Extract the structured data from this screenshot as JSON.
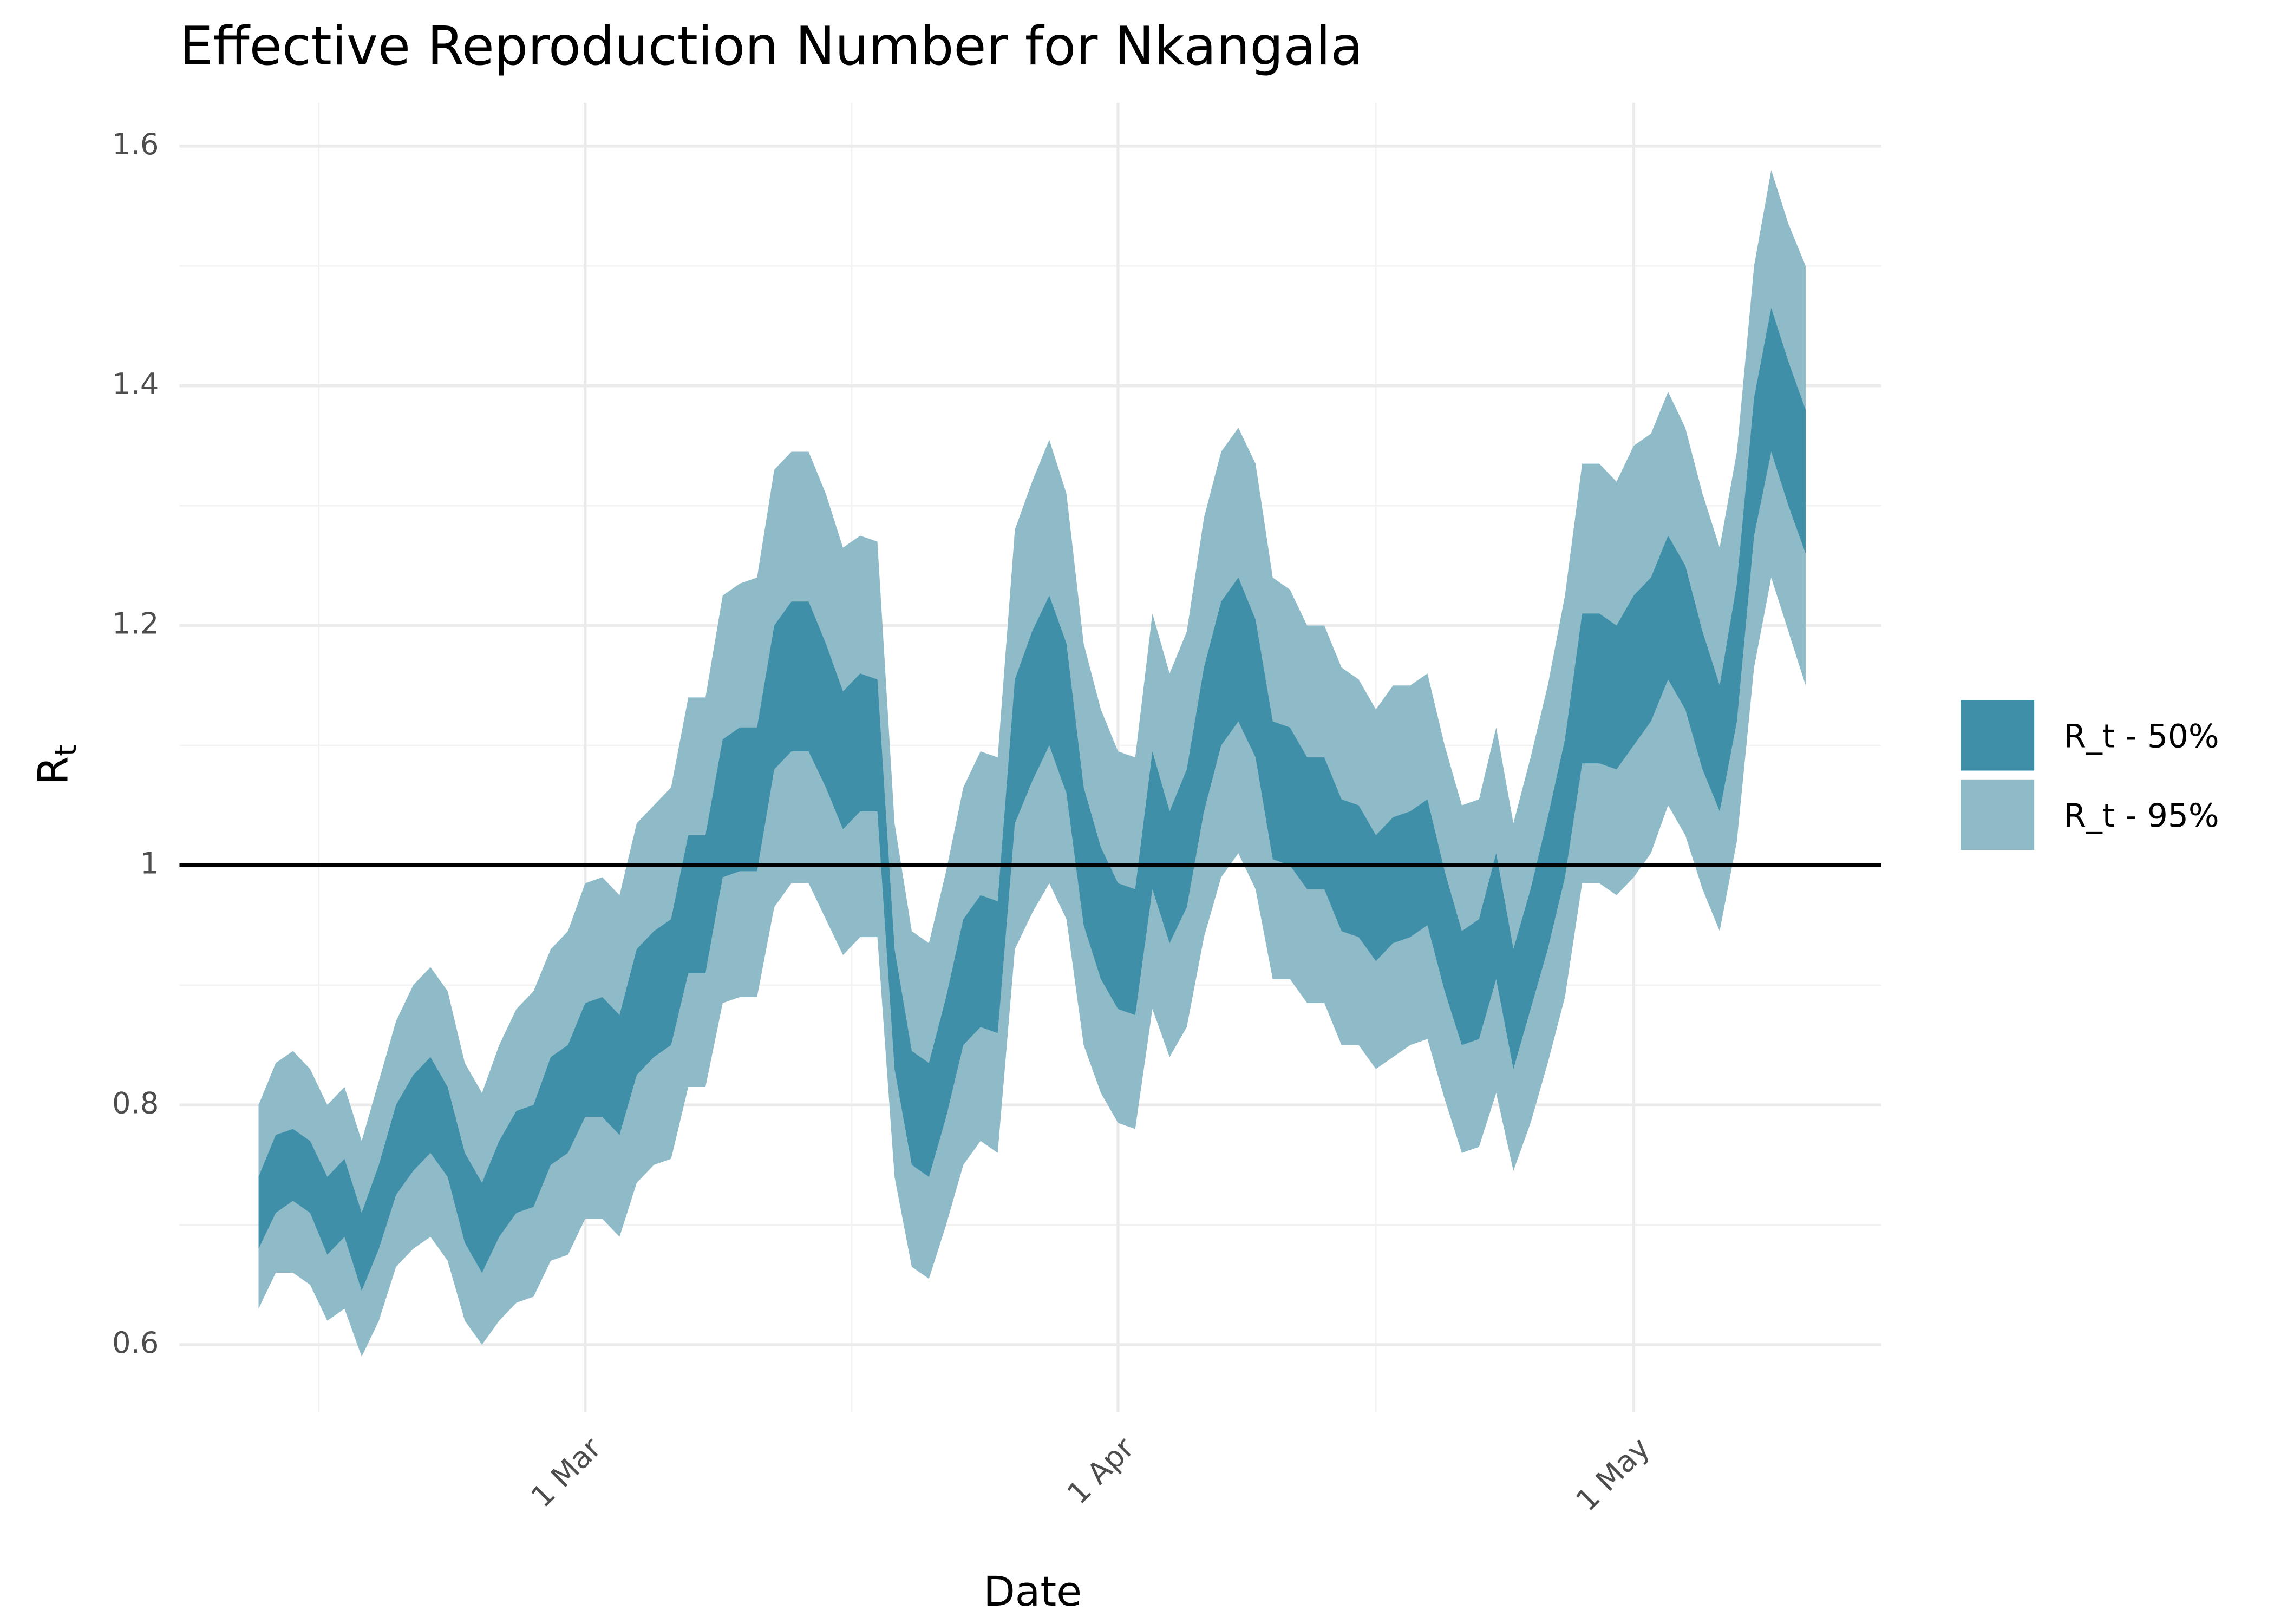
{
  "chart_data": {
    "type": "ribbon",
    "title": "Effective Reproduction Number for Nkangala",
    "xlabel": "Date",
    "ylabel": "R",
    "ylabel_sub": "t",
    "x": [
      41,
      42,
      43,
      44,
      45,
      46,
      47,
      48,
      49,
      50,
      51,
      52,
      53,
      54,
      55,
      56,
      57,
      58,
      59,
      60,
      61,
      62,
      63,
      64,
      65,
      66,
      67,
      68,
      69,
      70,
      71,
      72,
      73,
      74,
      75,
      76,
      77,
      78,
      79,
      80,
      81,
      82,
      83,
      84,
      85,
      86,
      87,
      88,
      89,
      90,
      91,
      92,
      93,
      94,
      95,
      96,
      97,
      98,
      99,
      100,
      101,
      102,
      103,
      104,
      105,
      106,
      107,
      108,
      109,
      110,
      111,
      112,
      113,
      114,
      115,
      116,
      117,
      118,
      119,
      120,
      121,
      122,
      123,
      124,
      125,
      126,
      127,
      128,
      129,
      130,
      131
    ],
    "xlim": [
      36.4,
      135.4
    ],
    "xticks": [
      {
        "value": 60,
        "label": "1 Mar"
      },
      {
        "value": 91,
        "label": "1 Apr"
      },
      {
        "value": 121,
        "label": "1 May"
      }
    ],
    "ylim": [
      0.544,
      1.636
    ],
    "yticks": [
      0.6,
      0.8,
      1.0,
      1.2,
      1.4,
      1.6
    ],
    "hline": 1.0,
    "grid": true,
    "legend": "right",
    "series": [
      {
        "name": "R_t - 95%",
        "color": "#8fbbc9",
        "upper": [
          0.8,
          0.835,
          0.845,
          0.83,
          0.8,
          0.815,
          0.77,
          0.82,
          0.87,
          0.9,
          0.915,
          0.895,
          0.835,
          0.81,
          0.85,
          0.88,
          0.895,
          0.93,
          0.945,
          0.985,
          0.99,
          0.975,
          1.035,
          1.05,
          1.065,
          1.14,
          1.14,
          1.225,
          1.235,
          1.24,
          1.33,
          1.345,
          1.345,
          1.31,
          1.265,
          1.275,
          1.27,
          1.035,
          0.945,
          0.935,
          0.995,
          1.065,
          1.095,
          1.09,
          1.28,
          1.32,
          1.355,
          1.31,
          1.185,
          1.13,
          1.095,
          1.09,
          1.21,
          1.16,
          1.195,
          1.29,
          1.345,
          1.365,
          1.335,
          1.24,
          1.23,
          1.2,
          1.2,
          1.165,
          1.155,
          1.13,
          1.15,
          1.15,
          1.16,
          1.1,
          1.05,
          1.055,
          1.115,
          1.035,
          1.09,
          1.15,
          1.225,
          1.335,
          1.335,
          1.32,
          1.35,
          1.36,
          1.395,
          1.365,
          1.31,
          1.265,
          1.345,
          1.5,
          1.58,
          1.535,
          1.5
        ],
        "lower": [
          0.63,
          0.66,
          0.66,
          0.65,
          0.62,
          0.63,
          0.59,
          0.62,
          0.665,
          0.68,
          0.69,
          0.67,
          0.62,
          0.6,
          0.62,
          0.635,
          0.64,
          0.67,
          0.675,
          0.705,
          0.705,
          0.69,
          0.735,
          0.75,
          0.755,
          0.815,
          0.815,
          0.885,
          0.89,
          0.89,
          0.965,
          0.985,
          0.985,
          0.955,
          0.925,
          0.94,
          0.94,
          0.74,
          0.665,
          0.655,
          0.7,
          0.75,
          0.77,
          0.76,
          0.93,
          0.96,
          0.985,
          0.955,
          0.85,
          0.81,
          0.785,
          0.78,
          0.88,
          0.84,
          0.865,
          0.94,
          0.99,
          1.01,
          0.98,
          0.905,
          0.905,
          0.885,
          0.885,
          0.85,
          0.85,
          0.83,
          0.84,
          0.85,
          0.855,
          0.805,
          0.76,
          0.765,
          0.81,
          0.745,
          0.785,
          0.835,
          0.89,
          0.985,
          0.985,
          0.975,
          0.99,
          1.01,
          1.05,
          1.025,
          0.98,
          0.945,
          1.02,
          1.165,
          1.24,
          1.195,
          1.15
        ]
      },
      {
        "name": "R_t - 50%",
        "color": "#3f8fa8",
        "upper": [
          0.74,
          0.775,
          0.78,
          0.77,
          0.74,
          0.755,
          0.71,
          0.75,
          0.8,
          0.825,
          0.84,
          0.815,
          0.76,
          0.735,
          0.77,
          0.795,
          0.8,
          0.84,
          0.85,
          0.885,
          0.89,
          0.875,
          0.93,
          0.945,
          0.955,
          1.025,
          1.025,
          1.105,
          1.115,
          1.115,
          1.2,
          1.22,
          1.22,
          1.185,
          1.145,
          1.16,
          1.155,
          0.93,
          0.845,
          0.835,
          0.89,
          0.955,
          0.975,
          0.97,
          1.155,
          1.195,
          1.225,
          1.185,
          1.065,
          1.015,
          0.985,
          0.98,
          1.095,
          1.045,
          1.08,
          1.165,
          1.22,
          1.24,
          1.205,
          1.12,
          1.115,
          1.09,
          1.09,
          1.055,
          1.05,
          1.025,
          1.04,
          1.045,
          1.055,
          0.995,
          0.945,
          0.955,
          1.01,
          0.93,
          0.98,
          1.04,
          1.105,
          1.21,
          1.21,
          1.2,
          1.225,
          1.24,
          1.275,
          1.25,
          1.195,
          1.15,
          1.235,
          1.39,
          1.465,
          1.42,
          1.38
        ],
        "lower": [
          0.68,
          0.71,
          0.72,
          0.71,
          0.675,
          0.69,
          0.645,
          0.68,
          0.725,
          0.745,
          0.76,
          0.74,
          0.685,
          0.66,
          0.69,
          0.71,
          0.715,
          0.75,
          0.76,
          0.79,
          0.79,
          0.775,
          0.825,
          0.84,
          0.85,
          0.91,
          0.91,
          0.99,
          0.995,
          0.995,
          1.08,
          1.095,
          1.095,
          1.065,
          1.03,
          1.045,
          1.045,
          0.83,
          0.75,
          0.74,
          0.79,
          0.85,
          0.865,
          0.86,
          1.035,
          1.07,
          1.1,
          1.06,
          0.95,
          0.905,
          0.88,
          0.875,
          0.98,
          0.935,
          0.965,
          1.045,
          1.1,
          1.12,
          1.09,
          1.005,
          1.0,
          0.98,
          0.98,
          0.945,
          0.94,
          0.92,
          0.935,
          0.94,
          0.95,
          0.895,
          0.85,
          0.855,
          0.905,
          0.83,
          0.88,
          0.93,
          0.99,
          1.085,
          1.085,
          1.08,
          1.1,
          1.12,
          1.155,
          1.13,
          1.08,
          1.045,
          1.12,
          1.275,
          1.345,
          1.3,
          1.26
        ]
      }
    ]
  }
}
